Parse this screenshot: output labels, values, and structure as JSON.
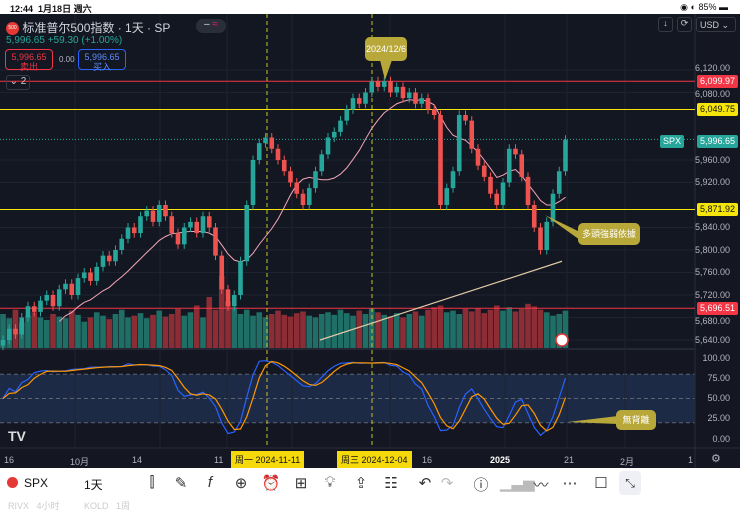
{
  "status": {
    "time": "12:44",
    "date": "1月18日 週六",
    "battery": "85%"
  },
  "header": {
    "logo": "500",
    "title": "标准普尔500指数 · 1天 · SP",
    "price": "5,996.65",
    "change": "+59.30 (+1.00%)",
    "sell_price": "5,996.65",
    "sell_label": "卖出",
    "spread": "0.00",
    "buy_price": "5,996.65",
    "buy_label": "买入",
    "indicator_count": "2"
  },
  "top_right": {
    "currency": "USD"
  },
  "price_axis": {
    "labels": [
      "6,120.00",
      "6,080.00",
      "5,960.00",
      "5,920.00",
      "5,840.00",
      "5,800.00",
      "5,760.00",
      "5,720.00",
      "5,680.00",
      "5,640.00"
    ],
    "values": [
      6120,
      6080,
      5960,
      5920,
      5840,
      5800,
      5760,
      5720,
      5680,
      5640
    ]
  },
  "levels": [
    {
      "label": "6,099.97",
      "value": 6099.97,
      "color": "#f23645"
    },
    {
      "label": "6,049.75",
      "value": 6049.75,
      "color": "#f5e50a"
    },
    {
      "label": "5,871.92",
      "value": 5871.92,
      "color": "#f5e50a"
    },
    {
      "label": "5,696.51",
      "value": 5696.51,
      "color": "#f23645"
    }
  ],
  "current": {
    "symbol": "SPX",
    "label": "5,996.65",
    "value": 5996.65
  },
  "stoch_axis": [
    "100.00",
    "75.00",
    "50.00",
    "25.00",
    "0.00"
  ],
  "callouts": {
    "date": "2024/12/6",
    "support": "多頭強弱依據",
    "divergence": "無背離"
  },
  "date_axis": {
    "labels": [
      "16",
      "10月",
      "14",
      "11",
      "16",
      "2025",
      "21",
      "2月",
      "1"
    ],
    "tag1": "周一 2024-11-11",
    "tag2": "周三 2024-12-04"
  },
  "chart_data": {
    "type": "candlestick",
    "closes": [
      5640,
      5660,
      5650,
      5680,
      5700,
      5690,
      5710,
      5720,
      5700,
      5730,
      5740,
      5720,
      5750,
      5760,
      5745,
      5770,
      5790,
      5780,
      5800,
      5820,
      5840,
      5830,
      5860,
      5870,
      5850,
      5880,
      5860,
      5830,
      5810,
      5840,
      5850,
      5830,
      5860,
      5840,
      5790,
      5730,
      5700,
      5720,
      5780,
      5880,
      5960,
      5990,
      6000,
      5980,
      5960,
      5940,
      5920,
      5900,
      5880,
      5910,
      5940,
      5970,
      6000,
      6010,
      6030,
      6050,
      6070,
      6060,
      6080,
      6100,
      6090,
      6100,
      6080,
      6090,
      6070,
      6080,
      6060,
      6070,
      6050,
      6040,
      5880,
      5910,
      5940,
      6040,
      6030,
      5980,
      5950,
      5930,
      5900,
      5880,
      5920,
      5980,
      5970,
      5930,
      5880,
      5840,
      5800,
      5850,
      5900,
      5940,
      5996
    ],
    "volume": [
      40,
      35,
      45,
      30,
      38,
      42,
      36,
      33,
      40,
      37,
      35,
      44,
      39,
      31,
      36,
      42,
      38,
      34,
      40,
      45,
      36,
      38,
      41,
      35,
      39,
      44,
      37,
      40,
      46,
      38,
      42,
      50,
      36,
      60,
      45,
      85,
      55,
      48,
      40,
      45,
      38,
      42,
      36,
      40,
      44,
      39,
      37,
      41,
      43,
      38,
      36,
      40,
      42,
      39,
      45,
      41,
      38,
      44,
      40,
      46,
      42,
      39,
      37,
      41,
      36,
      40,
      43,
      38,
      45,
      48,
      50,
      42,
      44,
      40,
      46,
      43,
      47,
      41,
      45,
      50,
      44,
      48,
      43,
      46,
      52,
      49,
      45,
      42,
      38,
      40,
      44
    ],
    "ma_long": [
      5640,
      5780
    ]
  },
  "toolbar": {
    "symbol": "SPX",
    "interval": "1天",
    "ghost1": "RIVX   4小时",
    "ghost2": "KOLD   1周"
  }
}
